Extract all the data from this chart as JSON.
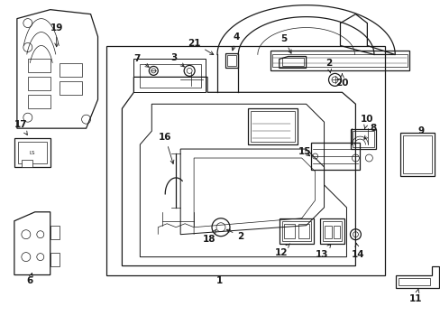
{
  "background_color": "#ffffff",
  "line_color": "#1a1a1a",
  "fig_width": 4.89,
  "fig_height": 3.6,
  "dpi": 100,
  "label_fs": 7.5,
  "lw_main": 0.9,
  "lw_thin": 0.5
}
